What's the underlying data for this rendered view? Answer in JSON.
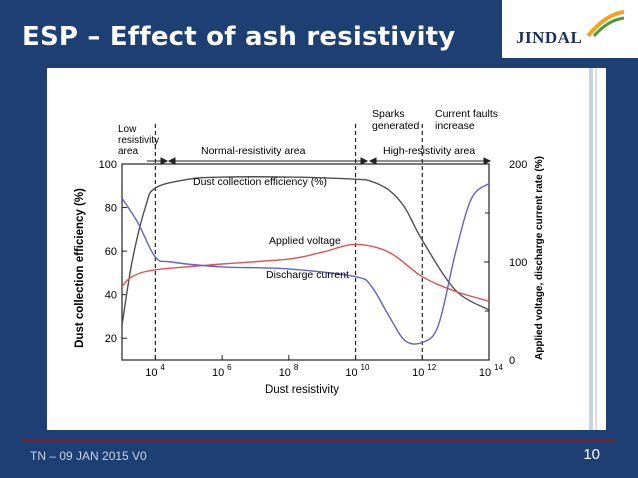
{
  "slide": {
    "title": "ESP – Effect of ash resistivity",
    "footer": "TN – 09 JAN 2015 V0",
    "page_number": "10",
    "logo_text": "JINDAL"
  },
  "colors": {
    "background": "#1e3f73",
    "efficiency": "#505050",
    "voltage": "#e05050",
    "current": "#6060d0"
  },
  "chart_data": {
    "type": "line",
    "xlabel": "Dust resistivity",
    "ylabel_left": "Dust collection efficiency (%)",
    "ylabel_right": "Applied voltage, discharge current rate (%)",
    "x_scale": "log",
    "xlim": [
      1000.0,
      100000000000000.0
    ],
    "ylim_left": [
      10,
      100
    ],
    "ylim_right": [
      0,
      200
    ],
    "x_ticks": [
      {
        "value": 10000.0,
        "label": "10",
        "exp": "4"
      },
      {
        "value": 1000000.0,
        "label": "10",
        "exp": "6"
      },
      {
        "value": 100000000.0,
        "label": "10",
        "exp": "8"
      },
      {
        "value": 10000000000.0,
        "label": "10",
        "exp": "10"
      },
      {
        "value": 1000000000000.0,
        "label": "10",
        "exp": "12"
      },
      {
        "value": 100000000000000.0,
        "label": "10",
        "exp": "14"
      }
    ],
    "y_ticks_left": [
      "100",
      "80",
      "60",
      "40",
      "20"
    ],
    "y_ticks_right": [
      "200",
      "100",
      "0"
    ],
    "regions": [
      {
        "label": "Low resistivity area"
      },
      {
        "label": "Normal-resistivity area"
      },
      {
        "label": "High-resistivity area"
      }
    ],
    "markers": [
      {
        "x": 10000.0,
        "label": ""
      },
      {
        "x": 10000000000.0,
        "label": "Sparks generated"
      },
      {
        "x": 1000000000000.0,
        "label": "Current faults increase"
      }
    ],
    "series": [
      {
        "name": "Dust collection efficiency (%)",
        "axis": "left",
        "x": [
          1000.0,
          2000.0,
          5000.0,
          10000.0,
          100000.0,
          1000000.0,
          100000000.0,
          10000000000.0,
          30000000000.0,
          100000000000.0,
          300000000000.0,
          1000000000000.0,
          10000000000000.0,
          100000000000000.0
        ],
        "y": [
          26,
          55,
          80,
          89,
          93,
          94,
          94,
          93,
          92,
          88,
          80,
          65,
          42,
          33
        ]
      },
      {
        "name": "Applied voltage",
        "axis": "right",
        "x": [
          1000.0,
          2000.0,
          10000.0,
          1000000.0,
          100000000.0,
          1000000000.0,
          10000000000.0,
          100000000000.0,
          1000000000000.0,
          10000000000000.0,
          100000000000000.0
        ],
        "y": [
          75,
          85,
          92,
          98,
          103,
          110,
          118,
          110,
          85,
          70,
          60
        ]
      },
      {
        "name": "Discharge current",
        "axis": "right",
        "x": [
          1000.0,
          3000.0,
          10000.0,
          30000.0,
          1000000.0,
          100000000.0,
          10000000000.0,
          30000000000.0,
          100000000000.0,
          300000000000.0,
          1000000000000.0,
          3000000000000.0,
          10000000000000.0,
          30000000000000.0,
          100000000000000.0
        ],
        "y": [
          165,
          140,
          105,
          100,
          95,
          93,
          85,
          75,
          45,
          20,
          18,
          35,
          110,
          165,
          180
        ]
      }
    ],
    "annotations": [
      {
        "text": "Dust collection efficiency (%)"
      },
      {
        "text": "Applied voltage"
      },
      {
        "text": "Discharge current"
      }
    ]
  }
}
